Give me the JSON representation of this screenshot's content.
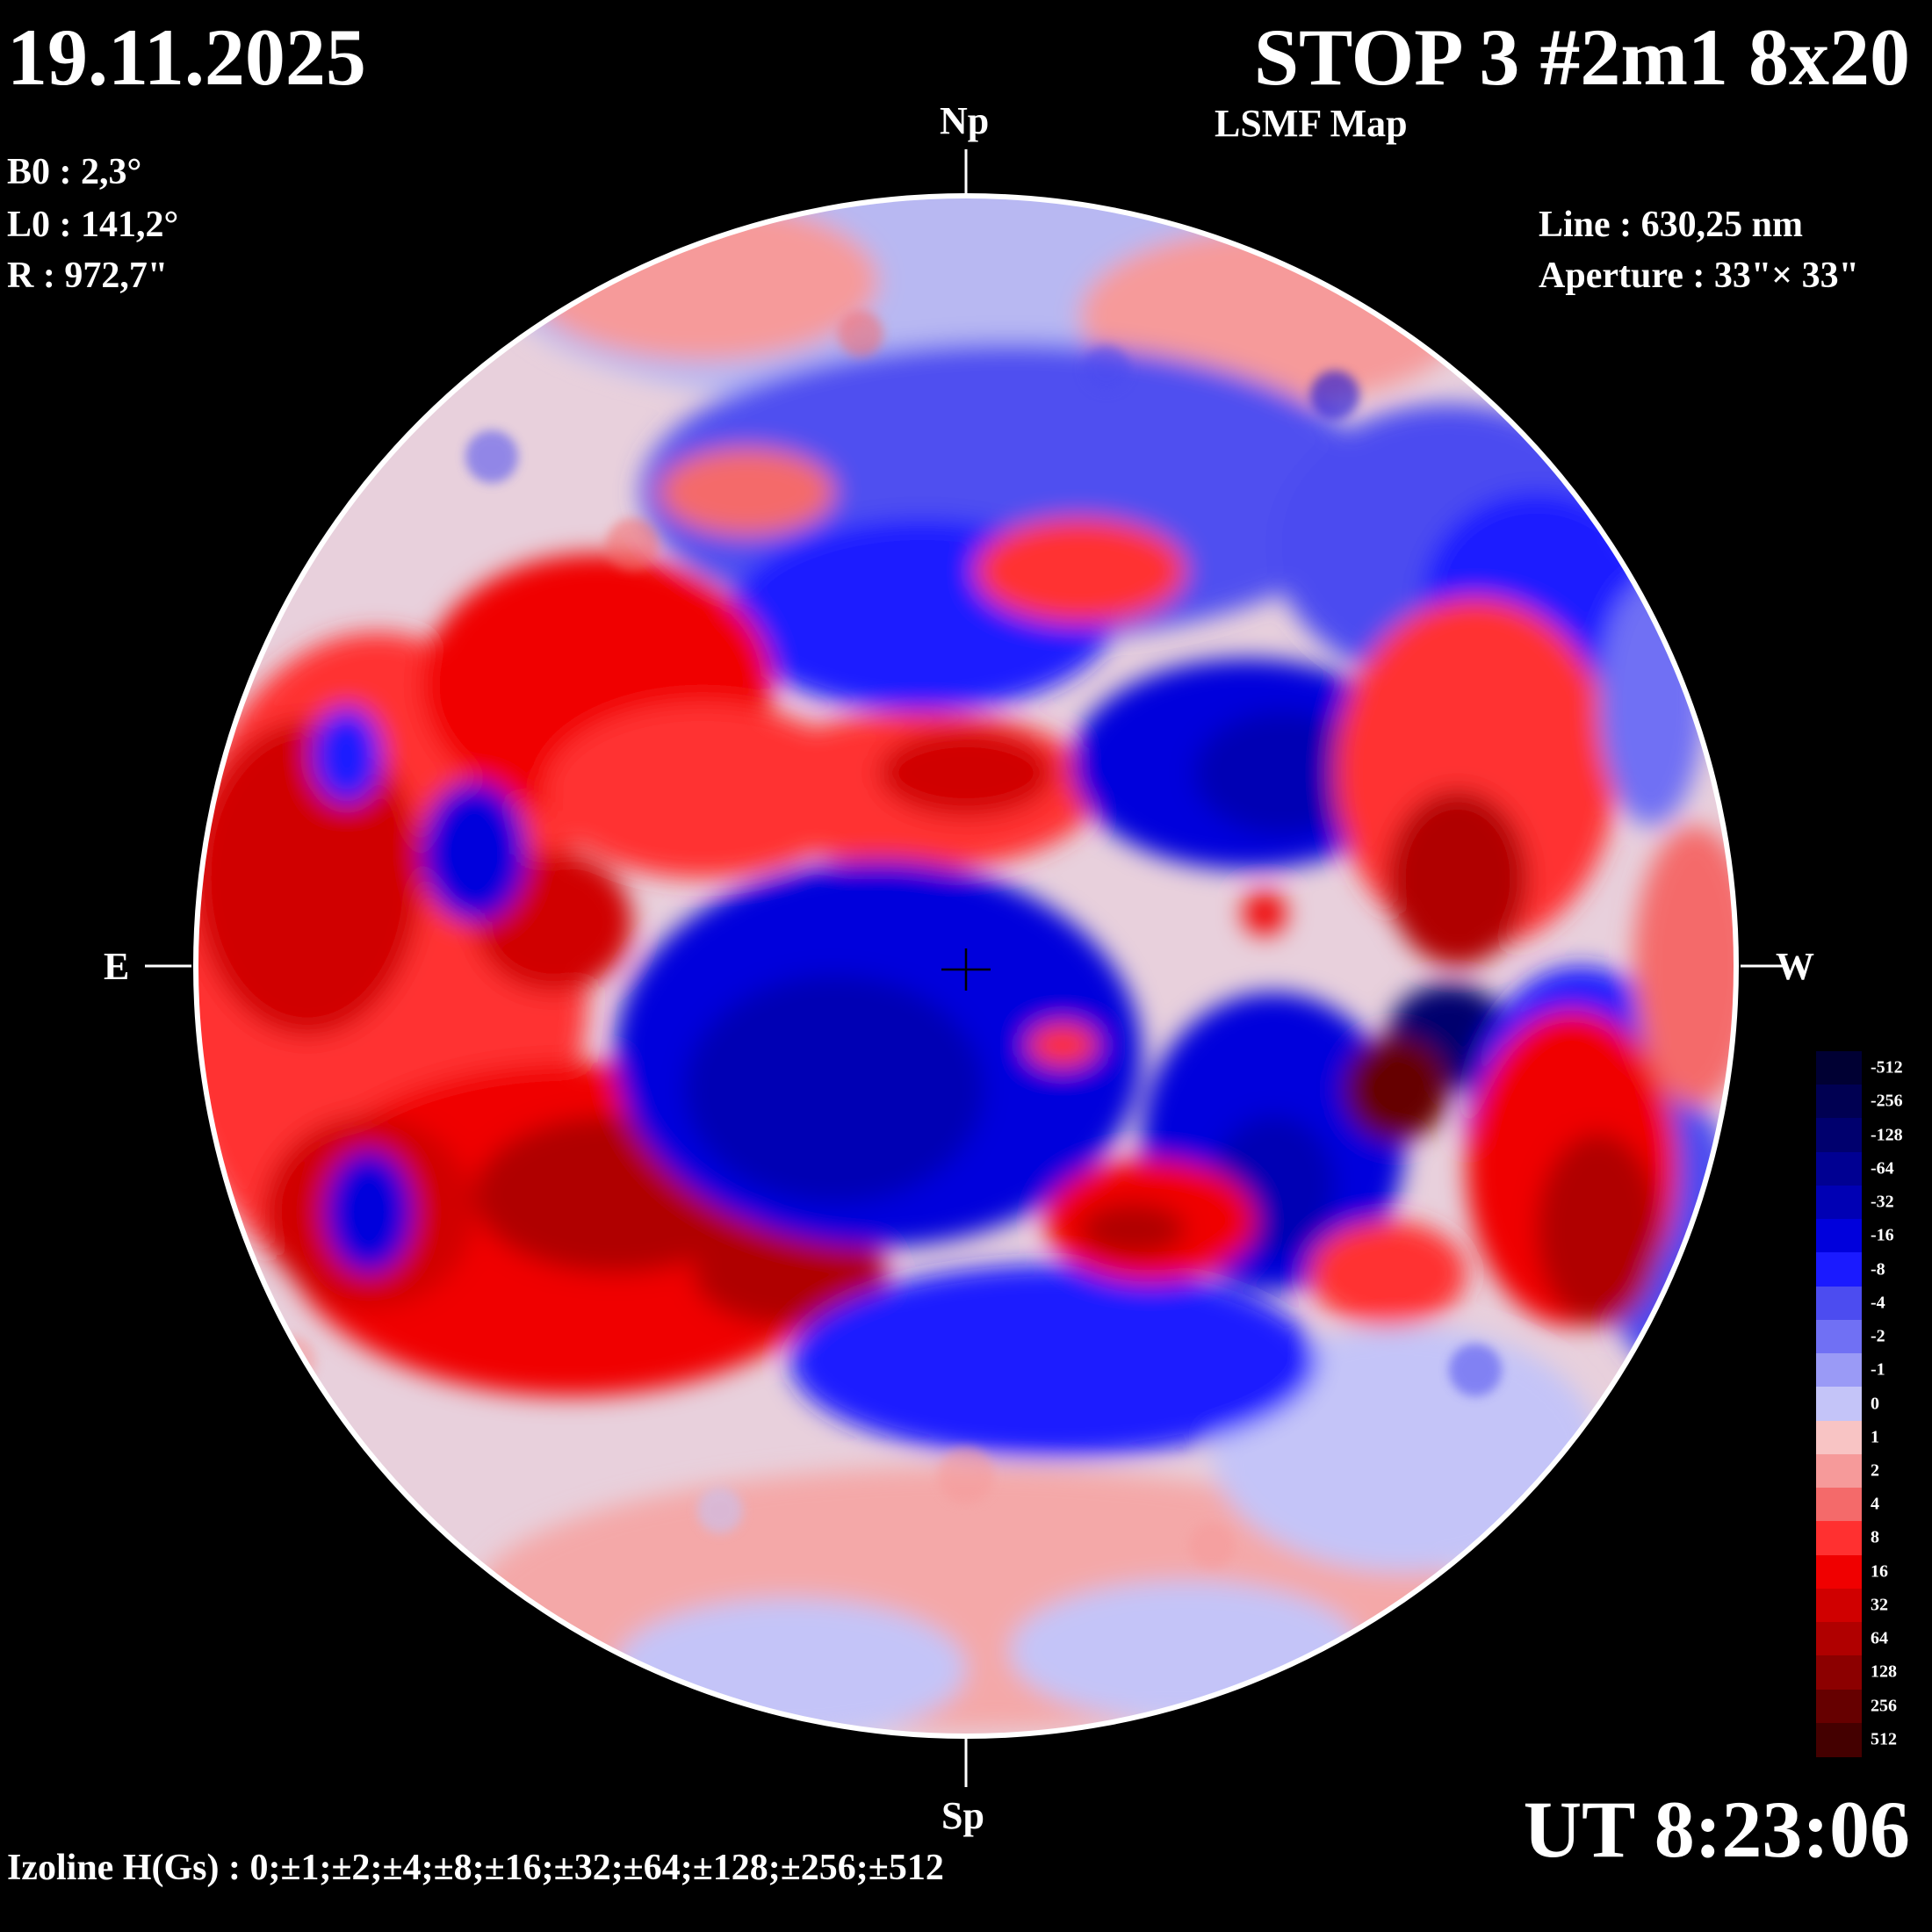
{
  "header": {
    "date": "19.11.2025",
    "title": "STOP 3 #2m1 8x20",
    "subtitle": "LSMF  Map"
  },
  "ephemeris": {
    "b0": "B0 : 2,3°",
    "l0": "L0 : 141,2°",
    "r": "R  : 972,7\""
  },
  "observation": {
    "line": "Line :  630,25 nm",
    "aperture": "Aperture : 33\"× 33\""
  },
  "directions": {
    "north": "Np",
    "south": "Sp",
    "east": "E",
    "west": "W"
  },
  "time": "UT 8:23:06",
  "izoline": "Izoline H(Gs) : 0;±1;±2;±4;±8;±16;±32;±64;±128;±256;±512",
  "colorbar": {
    "levels": [
      {
        "label": "-512",
        "color": "#000033"
      },
      {
        "label": "-256",
        "color": "#000052"
      },
      {
        "label": "-128",
        "color": "#00006e"
      },
      {
        "label": "-64",
        "color": "#000092"
      },
      {
        "label": "-32",
        "color": "#0000b4"
      },
      {
        "label": "-16",
        "color": "#0000dc"
      },
      {
        "label": "-8",
        "color": "#1a1aff"
      },
      {
        "label": "-4",
        "color": "#4c4cf0"
      },
      {
        "label": "-2",
        "color": "#7070f4"
      },
      {
        "label": "-1",
        "color": "#9a9af6"
      },
      {
        "label": "0",
        "color": "#c4c4f8"
      },
      {
        "label": "1",
        "color": "#f8c4c4"
      },
      {
        "label": "2",
        "color": "#f69a9a"
      },
      {
        "label": "4",
        "color": "#f46a6a"
      },
      {
        "label": "8",
        "color": "#ff3030"
      },
      {
        "label": "16",
        "color": "#f00000"
      },
      {
        "label": "32",
        "color": "#d00000"
      },
      {
        "label": "64",
        "color": "#b00000"
      },
      {
        "label": "128",
        "color": "#8c0000"
      },
      {
        "label": "256",
        "color": "#660000"
      },
      {
        "label": "512",
        "color": "#440000"
      }
    ]
  },
  "map_regions": [
    {
      "polarity": "positive",
      "strength": "strong",
      "area": "east"
    },
    {
      "polarity": "positive",
      "strength": "strong",
      "area": "south-east"
    },
    {
      "polarity": "negative",
      "strength": "strong",
      "area": "center"
    },
    {
      "polarity": "negative",
      "strength": "strong",
      "area": "north-center"
    },
    {
      "polarity": "positive",
      "strength": "strong",
      "area": "north-west"
    },
    {
      "polarity": "positive",
      "strength": "strong",
      "area": "south-west"
    },
    {
      "polarity": "negative",
      "strength": "moderate",
      "area": "north"
    },
    {
      "polarity": "positive",
      "strength": "weak",
      "area": "south-limb"
    }
  ]
}
